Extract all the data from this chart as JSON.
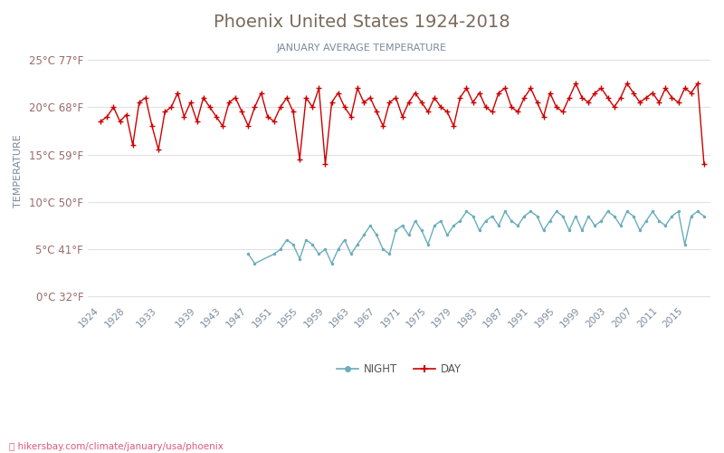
{
  "title": "Phoenix United States 1924-2018",
  "subtitle": "JANUARY AVERAGE TEMPERATURE",
  "ylabel": "TEMPERATURE",
  "url_text": "hikersbay.com/climate/january/usa/phoenix",
  "title_color": "#7a6a5a",
  "subtitle_color": "#7a8a9a",
  "ylabel_color": "#7a8a9a",
  "background_color": "#ffffff",
  "grid_color": "#e0e0e0",
  "years": [
    1924,
    1925,
    1926,
    1927,
    1928,
    1929,
    1930,
    1931,
    1932,
    1933,
    1934,
    1935,
    1936,
    1937,
    1938,
    1939,
    1940,
    1941,
    1942,
    1943,
    1944,
    1945,
    1946,
    1947,
    1948,
    1949,
    1950,
    1951,
    1952,
    1953,
    1954,
    1955,
    1956,
    1957,
    1958,
    1959,
    1960,
    1961,
    1962,
    1963,
    1964,
    1965,
    1966,
    1967,
    1968,
    1969,
    1970,
    1971,
    1972,
    1973,
    1974,
    1975,
    1976,
    1977,
    1978,
    1979,
    1980,
    1981,
    1982,
    1983,
    1984,
    1985,
    1986,
    1987,
    1988,
    1989,
    1990,
    1991,
    1992,
    1993,
    1994,
    1995,
    1996,
    1997,
    1998,
    1999,
    2000,
    2001,
    2002,
    2003,
    2004,
    2005,
    2006,
    2007,
    2008,
    2009,
    2010,
    2011,
    2012,
    2013,
    2014,
    2015,
    2016,
    2017,
    2018
  ],
  "day_temps": [
    18.5,
    19.0,
    20.0,
    18.5,
    19.2,
    16.0,
    20.5,
    21.0,
    18.0,
    15.5,
    19.5,
    20.0,
    21.5,
    19.0,
    20.5,
    18.5,
    21.0,
    20.0,
    19.0,
    18.0,
    20.5,
    21.0,
    19.5,
    18.0,
    20.0,
    21.5,
    19.0,
    18.5,
    20.0,
    21.0,
    19.5,
    14.5,
    21.0,
    20.0,
    22.0,
    14.0,
    20.5,
    21.5,
    20.0,
    19.0,
    22.0,
    20.5,
    21.0,
    19.5,
    18.0,
    20.5,
    21.0,
    19.0,
    20.5,
    21.5,
    20.5,
    19.5,
    21.0,
    20.0,
    19.5,
    18.0,
    21.0,
    22.0,
    20.5,
    21.5,
    20.0,
    19.5,
    21.5,
    22.0,
    20.0,
    19.5,
    21.0,
    22.0,
    20.5,
    19.0,
    21.5,
    20.0,
    19.5,
    21.0,
    22.5,
    21.0,
    20.5,
    21.5,
    22.0,
    21.0,
    20.0,
    21.0,
    22.5,
    21.5,
    20.5,
    21.0,
    21.5,
    20.5,
    22.0,
    21.0,
    20.5,
    22.0,
    21.5,
    22.5,
    14.0
  ],
  "night_years": [
    1947,
    1948,
    1951,
    1952,
    1953,
    1954,
    1955,
    1956,
    1957,
    1958,
    1959,
    1960,
    1961,
    1962,
    1963,
    1964,
    1965,
    1966,
    1967,
    1968,
    1969,
    1970,
    1971,
    1972,
    1973,
    1974,
    1975,
    1976,
    1977,
    1978,
    1979,
    1980,
    1981,
    1982,
    1983,
    1984,
    1985,
    1986,
    1987,
    1988,
    1989,
    1990,
    1991,
    1992,
    1993,
    1994,
    1995,
    1996,
    1997,
    1998,
    1999,
    2000,
    2001,
    2002,
    2003,
    2004,
    2005,
    2006,
    2007,
    2008,
    2009,
    2010,
    2011,
    2012,
    2013,
    2014,
    2015,
    2016,
    2017,
    2018
  ],
  "night_temps": [
    4.5,
    3.5,
    4.5,
    5.0,
    6.0,
    5.5,
    4.0,
    6.0,
    5.5,
    4.5,
    5.0,
    3.5,
    5.0,
    6.0,
    4.5,
    5.5,
    6.5,
    7.5,
    6.5,
    5.0,
    4.5,
    7.0,
    7.5,
    6.5,
    8.0,
    7.0,
    5.5,
    7.5,
    8.0,
    6.5,
    7.5,
    8.0,
    9.0,
    8.5,
    7.0,
    8.0,
    8.5,
    7.5,
    9.0,
    8.0,
    7.5,
    8.5,
    9.0,
    8.5,
    7.0,
    8.0,
    9.0,
    8.5,
    7.0,
    8.5,
    7.0,
    8.5,
    7.5,
    8.0,
    9.0,
    8.5,
    7.5,
    9.0,
    8.5,
    7.0,
    8.0,
    9.0,
    8.0,
    7.5,
    8.5,
    9.0,
    5.5,
    8.5,
    9.0,
    8.5
  ],
  "day_color": "#cc0000",
  "night_color": "#6aadbb",
  "yticks_celsius": [
    0,
    5,
    10,
    15,
    20,
    25
  ],
  "yticks_fahrenheit": [
    32,
    41,
    50,
    59,
    68,
    77
  ],
  "xtick_years": [
    1924,
    1928,
    1933,
    1939,
    1943,
    1947,
    1951,
    1955,
    1959,
    1963,
    1967,
    1971,
    1975,
    1979,
    1983,
    1987,
    1991,
    1995,
    1999,
    2003,
    2007,
    2011,
    2015
  ],
  "ylim": [
    -0.5,
    27
  ],
  "xlim": [
    1922,
    2019
  ]
}
